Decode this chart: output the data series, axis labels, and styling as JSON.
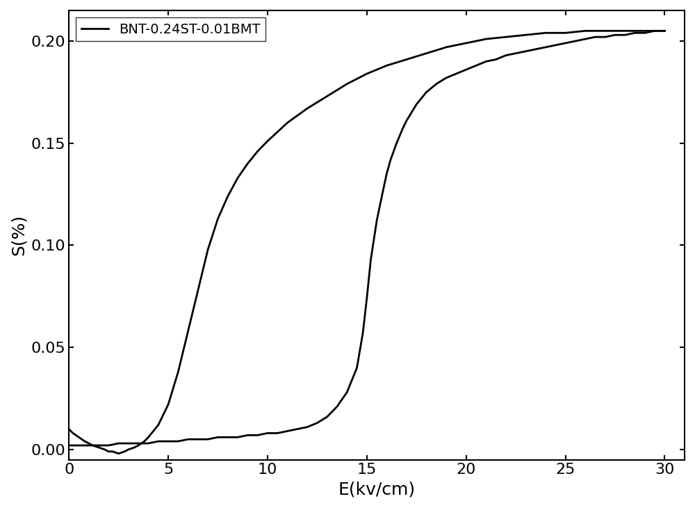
{
  "title": "",
  "xlabel": "E(kv/cm)",
  "ylabel": "S(%)",
  "legend_label": "BNT-0.24ST-0.01BMT",
  "line_color": "#000000",
  "line_width": 2.0,
  "background_color": "#ffffff",
  "xlim": [
    0,
    31
  ],
  "ylim": [
    -0.005,
    0.215
  ],
  "xticks": [
    0,
    5,
    10,
    15,
    20,
    25,
    30
  ],
  "yticks": [
    0.0,
    0.05,
    0.1,
    0.15,
    0.2
  ],
  "xlabel_fontsize": 18,
  "ylabel_fontsize": 18,
  "tick_fontsize": 16,
  "legend_fontsize": 14,
  "forward_E": [
    0.0,
    0.2,
    0.5,
    0.8,
    1.0,
    1.2,
    1.5,
    1.8,
    2.0,
    2.2,
    2.5,
    2.8,
    3.0,
    3.3,
    3.5,
    3.8,
    4.0,
    4.5,
    5.0,
    5.5,
    6.0,
    6.5,
    7.0,
    7.5,
    8.0,
    8.5,
    9.0,
    9.5,
    10.0,
    11.0,
    12.0,
    13.0,
    14.0,
    15.0,
    16.0,
    17.0,
    18.0,
    19.0,
    20.0,
    21.0,
    22.0,
    23.0,
    24.0,
    25.0,
    26.0,
    27.0,
    28.0,
    29.0,
    29.5,
    30.0
  ],
  "forward_S": [
    0.01,
    0.008,
    0.006,
    0.004,
    0.003,
    0.002,
    0.001,
    0.0,
    -0.001,
    -0.001,
    -0.002,
    -0.001,
    0.0,
    0.001,
    0.002,
    0.004,
    0.006,
    0.012,
    0.022,
    0.038,
    0.058,
    0.078,
    0.098,
    0.113,
    0.124,
    0.133,
    0.14,
    0.146,
    0.151,
    0.16,
    0.167,
    0.173,
    0.179,
    0.184,
    0.188,
    0.191,
    0.194,
    0.197,
    0.199,
    0.201,
    0.202,
    0.203,
    0.204,
    0.204,
    0.205,
    0.205,
    0.205,
    0.205,
    0.205,
    0.205
  ],
  "return_E": [
    30.0,
    29.5,
    29.0,
    28.5,
    28.0,
    27.5,
    27.0,
    26.5,
    26.0,
    25.5,
    25.0,
    24.5,
    24.0,
    23.5,
    23.0,
    22.5,
    22.0,
    21.5,
    21.0,
    20.5,
    20.0,
    19.5,
    19.0,
    18.5,
    18.0,
    17.5,
    17.0,
    16.8,
    16.5,
    16.2,
    16.0,
    15.8,
    15.5,
    15.2,
    15.0,
    14.8,
    14.5,
    14.0,
    13.5,
    13.0,
    12.5,
    12.0,
    11.5,
    11.0,
    10.5,
    10.0,
    9.5,
    9.0,
    8.5,
    8.0,
    7.5,
    7.0,
    6.5,
    6.0,
    5.5,
    5.0,
    4.5,
    4.0,
    3.5,
    3.0,
    2.5,
    2.0,
    1.5,
    1.0,
    0.5,
    0.0
  ],
  "return_S": [
    0.205,
    0.205,
    0.204,
    0.204,
    0.203,
    0.203,
    0.202,
    0.202,
    0.201,
    0.2,
    0.199,
    0.198,
    0.197,
    0.196,
    0.195,
    0.194,
    0.193,
    0.191,
    0.19,
    0.188,
    0.186,
    0.184,
    0.182,
    0.179,
    0.175,
    0.169,
    0.161,
    0.157,
    0.15,
    0.142,
    0.135,
    0.126,
    0.112,
    0.093,
    0.074,
    0.057,
    0.04,
    0.028,
    0.021,
    0.016,
    0.013,
    0.011,
    0.01,
    0.009,
    0.008,
    0.008,
    0.007,
    0.007,
    0.006,
    0.006,
    0.006,
    0.005,
    0.005,
    0.005,
    0.004,
    0.004,
    0.004,
    0.003,
    0.003,
    0.003,
    0.003,
    0.002,
    0.002,
    0.002,
    0.002,
    0.002
  ]
}
